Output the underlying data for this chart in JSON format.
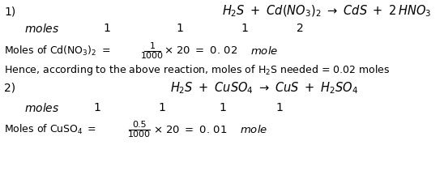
{
  "bg_color": "#ffffff",
  "text_color": "#000000",
  "figsize": [
    5.48,
    2.16
  ],
  "dpi": 100,
  "eq1": "$\\mathit{H_2S}\\ +\\ \\mathit{Cd(NO_3)_2}\\ \\rightarrow\\ \\mathit{CdS}\\ +\\ 2\\,\\mathit{HNO_3}$",
  "eq2": "$\\mathit{H_2S}\\ +\\ \\mathit{CuSO_4}\\ \\rightarrow\\ \\mathit{CuS}\\ +\\ \\mathit{H_2SO_4}$",
  "moles_label": "$\\mathit{moles}$",
  "moles1_nums": [
    "1",
    "1",
    "1",
    "2"
  ],
  "moles2_nums": [
    "1",
    "1",
    "1",
    "1"
  ],
  "label1": "1)",
  "label2": "2)",
  "cd_line1": "Moles of Cd(NO$_3$)$_2$ $=$",
  "cd_frac_num": "1",
  "cd_frac_den": "1000",
  "cd_line2": "$\\times$ 20 $=$ 0. 02",
  "cd_mole": "$\\mathit{mole}$",
  "hence_line": "Hence, according to the above reaction, moles of H$_2$S needed = 0.02 moles",
  "cu_line1": "Moles of CuSO$_4$ $=$",
  "cu_frac_num": "0.5",
  "cu_frac_den": "1000",
  "cu_line2": "$\\times$ 20 $=$ 0. 01",
  "cu_mole": "$\\mathit{mole}$"
}
